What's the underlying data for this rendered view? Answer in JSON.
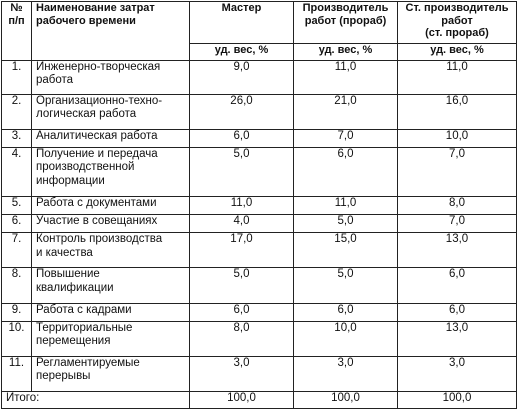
{
  "headers": {
    "num": "№\nп/п",
    "name": "Наименование затрат\nрабочего времени",
    "master": "Мастер",
    "foreman": "Производитель\nработ (прораб)",
    "senior_foreman": "Ст. производитель\nработ\n(ст. прораб)",
    "unit": "уд. вес, %"
  },
  "rows": [
    {
      "num": "1.",
      "name": "Инженерно-творческая\nработа",
      "master": "9,0",
      "foreman": "11,0",
      "senior": "11,0"
    },
    {
      "num": "2.",
      "name": "Организационно-техно-\nлогическая работа",
      "master": "26,0",
      "foreman": "21,0",
      "senior": "16,0"
    },
    {
      "num": "3.",
      "name": "Аналитическая работа",
      "master": "6,0",
      "foreman": "7,0",
      "senior": "10,0"
    },
    {
      "num": "4.",
      "name": "Получение и передача\nпроизводственной\nинформации",
      "master": "5,0",
      "foreman": "6,0",
      "senior": "7,0"
    },
    {
      "num": "5.",
      "name": "Работа с документами",
      "master": "11,0",
      "foreman": "11,0",
      "senior": "8,0"
    },
    {
      "num": "6.",
      "name": "Участие в совещаниях",
      "master": "4,0",
      "foreman": "5,0",
      "senior": "7,0"
    },
    {
      "num": "7.",
      "name": "Контроль производства\nи качества",
      "master": "17,0",
      "foreman": "15,0",
      "senior": "13,0"
    },
    {
      "num": "8.",
      "name": "Повышение\nквалификации",
      "master": "5,0",
      "foreman": "5,0",
      "senior": "6,0"
    },
    {
      "num": "9.",
      "name": "Работа с кадрами",
      "master": "6,0",
      "foreman": "6,0",
      "senior": "6,0"
    },
    {
      "num": "10.",
      "name": "Территориальные\nперемещения",
      "master": "8,0",
      "foreman": "10,0",
      "senior": "13,0"
    },
    {
      "num": "11.",
      "name": "Регламентируемые\nперерывы",
      "master": "3,0",
      "foreman": "3,0",
      "senior": "3,0"
    }
  ],
  "total": {
    "label": "Итого:",
    "master": "100,0",
    "foreman": "100,0",
    "senior": "100,0"
  }
}
